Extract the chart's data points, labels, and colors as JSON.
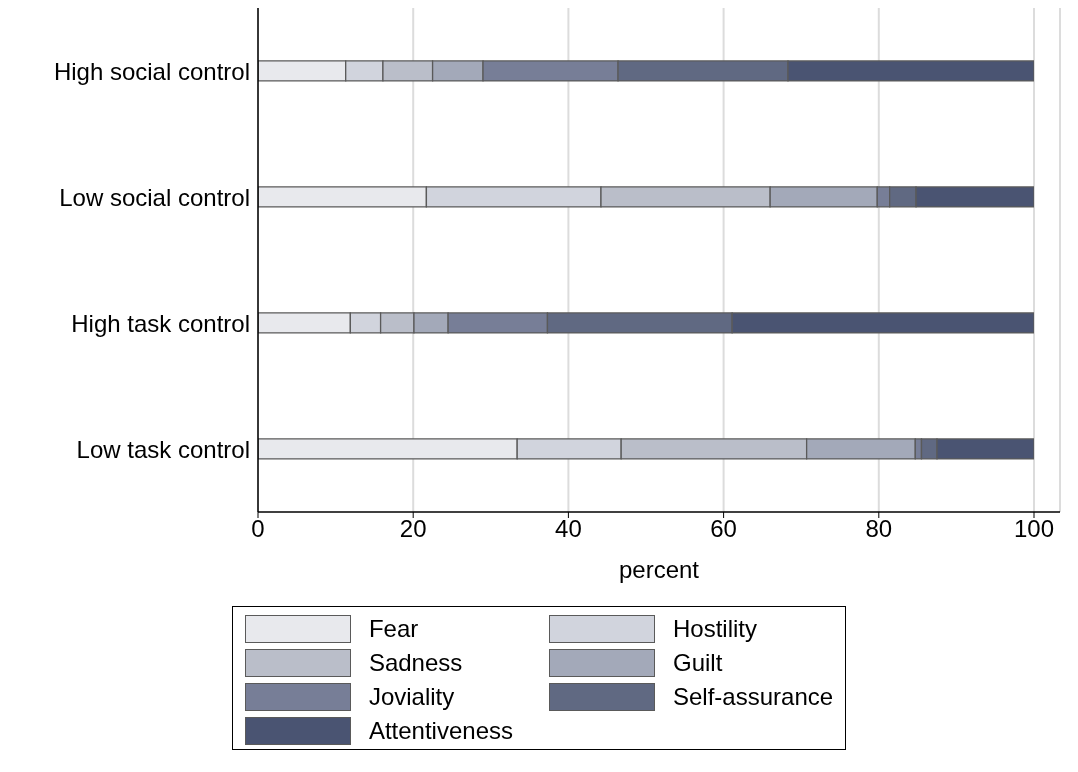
{
  "chart_data": {
    "type": "bar",
    "orientation": "horizontal",
    "stacked": true,
    "xlabel": "percent",
    "categories": [
      "High social control",
      "Low social control",
      "High task control",
      "Low task control"
    ],
    "xlim": [
      0,
      100
    ],
    "xticks": [
      0,
      20,
      40,
      60,
      80,
      100
    ],
    "grid": "x",
    "legend": "bottom",
    "series": [
      {
        "name": "Fear",
        "color": "#e8e9ed",
        "values": [
          11.3,
          21.7,
          11.9,
          33.4
        ]
      },
      {
        "name": "Hostility",
        "color": "#d1d4dd",
        "values": [
          4.8,
          22.5,
          3.9,
          13.4
        ]
      },
      {
        "name": "Sadness",
        "color": "#babec9",
        "values": [
          6.4,
          21.8,
          4.3,
          23.9
        ]
      },
      {
        "name": "Guilt",
        "color": "#a3a9b9",
        "values": [
          6.5,
          13.8,
          4.4,
          14.0
        ]
      },
      {
        "name": "Joviality",
        "color": "#777e97",
        "values": [
          17.4,
          1.6,
          12.8,
          0.8
        ]
      },
      {
        "name": "Self-assurance",
        "color": "#606982",
        "values": [
          21.9,
          3.4,
          23.8,
          2.0
        ]
      },
      {
        "name": "Attentiveness",
        "color": "#4a5472",
        "values": [
          31.7,
          15.2,
          38.9,
          12.5
        ]
      }
    ]
  }
}
